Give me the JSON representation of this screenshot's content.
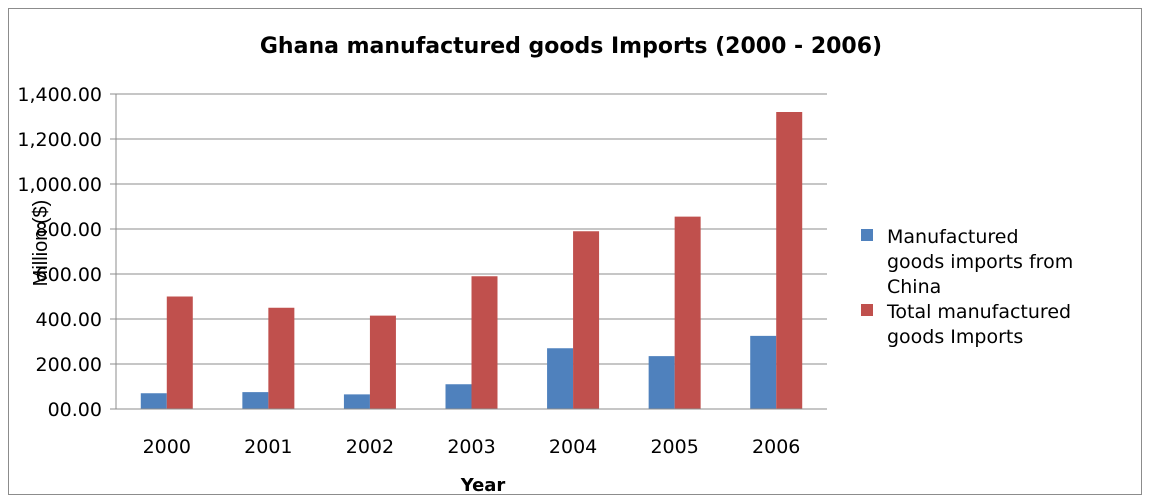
{
  "chart_data": {
    "type": "bar",
    "title": "Ghana manufactured goods Imports (2000 - 2006)",
    "xlabel": "Year",
    "ylabel": "Million ($)",
    "ylim": [
      0,
      1400
    ],
    "yticks": [
      "00.00",
      "200.00",
      "400.00",
      "600.00",
      "800.00",
      "1,000.00",
      "1,200.00",
      "1,400.00"
    ],
    "categories": [
      "2000",
      "2001",
      "2002",
      "2003",
      "2004",
      "2005",
      "2006"
    ],
    "grid": true,
    "legend_position": "right",
    "series": [
      {
        "name_lines": [
          "Manufactured",
          "goods imports from",
          "China"
        ],
        "color": "#4f81bd",
        "values": [
          70,
          75,
          65,
          110,
          270,
          235,
          325
        ]
      },
      {
        "name_lines": [
          "Total manufactured",
          "goods Imports"
        ],
        "color": "#c0504d",
        "values": [
          500,
          450,
          415,
          590,
          790,
          855,
          1320
        ]
      }
    ]
  }
}
